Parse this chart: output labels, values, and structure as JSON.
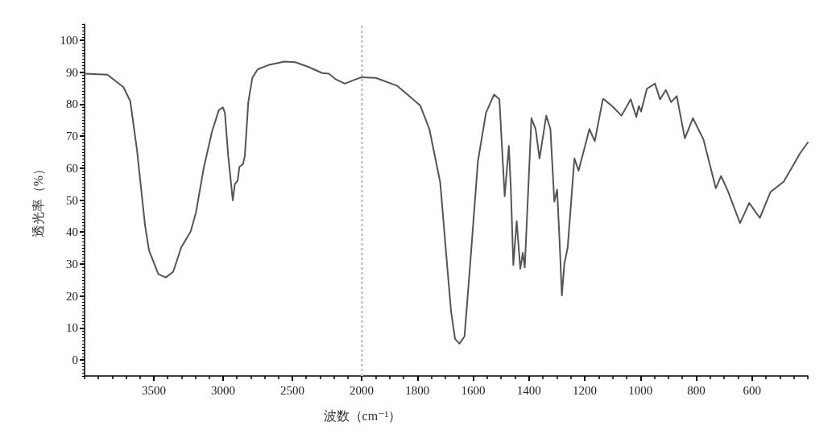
{
  "chart_data": [
    {
      "type": "line",
      "ylabel": "透光率（%）",
      "xlim": [
        4000,
        2000
      ],
      "xticks": [
        3500,
        3000,
        2500
      ],
      "ylim": [
        -5,
        105
      ],
      "yticks": [
        0,
        10,
        20,
        30,
        40,
        50,
        60,
        70,
        80,
        90,
        100
      ],
      "grid": false,
      "marker": "none",
      "line_style": "solid",
      "series": [
        {
          "color": "#555555",
          "x": [
            4000,
            3835,
            3719,
            3670,
            3622,
            3564,
            3535,
            3467,
            3413,
            3360,
            3302,
            3234,
            3196,
            3138,
            3080,
            3031,
            3002,
            2987,
            2963,
            2930,
            2915,
            2895,
            2882,
            2856,
            2843,
            2818,
            2789,
            2750,
            2673,
            2557,
            2479,
            2382,
            2285,
            2237,
            2188,
            2121,
            2052,
            2000
          ],
          "values": [
            89.5,
            89.2,
            85.3,
            80.9,
            65.8,
            42.3,
            34.3,
            26.8,
            25.8,
            27.6,
            35.2,
            40.2,
            46.1,
            60.4,
            71.4,
            78.1,
            79.0,
            77.3,
            63.8,
            49.9,
            55.0,
            56.1,
            60.4,
            61.3,
            63.8,
            80.6,
            88.2,
            90.9,
            92.2,
            93.3,
            93.1,
            91.6,
            89.7,
            89.5,
            87.8,
            86.4,
            87.6,
            88.4
          ]
        }
      ]
    },
    {
      "type": "line",
      "xlabel": "波数（cm⁻¹）",
      "xlim": [
        2000,
        400
      ],
      "xticks": [
        2000,
        1800,
        1600,
        1400,
        1200,
        1000,
        800,
        600
      ],
      "ylim": [
        -5,
        105
      ],
      "tick_labels": "x",
      "grid": false,
      "marker": "none",
      "line_style": "solid",
      "ref_lines": [
        {
          "axis": "x",
          "value": 2000,
          "color": "#cccccc",
          "line_style": "dotted"
        }
      ],
      "series": [
        {
          "color": "#555555",
          "x": [
            2000,
            1949,
            1872,
            1790,
            1757,
            1718,
            1694,
            1679,
            1665,
            1649,
            1631,
            1612,
            1583,
            1554,
            1525,
            1506,
            1487,
            1472,
            1465,
            1456,
            1444,
            1431,
            1422,
            1415,
            1391,
            1376,
            1362,
            1338,
            1323,
            1309,
            1299,
            1290,
            1282,
            1273,
            1261,
            1237,
            1222,
            1183,
            1164,
            1135,
            1131,
            1102,
            1068,
            1035,
            1015,
            1006,
            998,
            977,
            948,
            930,
            909,
            890,
            870,
            841,
            812,
            774,
            730,
            711,
            687,
            643,
            610,
            572,
            534,
            486,
            428,
            400
          ],
          "values": [
            88.4,
            88.2,
            85.7,
            79.6,
            72.2,
            55.4,
            30.2,
            15.0,
            6.6,
            5.1,
            7.4,
            28.5,
            62.1,
            77.3,
            83.0,
            81.5,
            51.2,
            66.9,
            53.7,
            29.7,
            43.4,
            28.5,
            33.5,
            28.9,
            75.6,
            72.2,
            63.0,
            76.4,
            72.2,
            49.5,
            53.3,
            36.9,
            20.2,
            30.1,
            35.2,
            63.0,
            59.2,
            72.2,
            68.4,
            81.5,
            81.5,
            79.4,
            76.4,
            81.5,
            76.0,
            79.4,
            77.7,
            84.8,
            86.4,
            81.5,
            84.4,
            80.6,
            82.5,
            69.3,
            75.6,
            68.9,
            53.7,
            57.5,
            52.9,
            42.8,
            49.1,
            44.4,
            52.5,
            55.8,
            64.6,
            68.0
          ]
        }
      ]
    }
  ]
}
